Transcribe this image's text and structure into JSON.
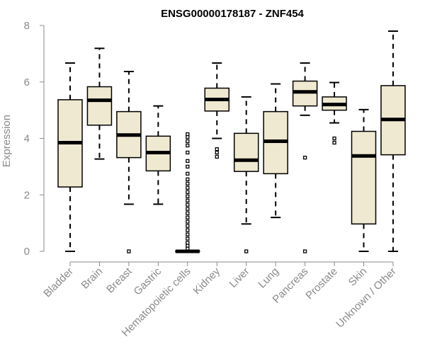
{
  "chart_data": {
    "type": "boxplot",
    "title": "ENSG00000178187 - ZNF454",
    "xlabel": "",
    "ylabel": "Expression",
    "ylim": [
      0,
      8
    ],
    "yticks": [
      0,
      2,
      4,
      6,
      8
    ],
    "box_color": "#efe9d1",
    "stroke_color": "#000000",
    "categories": [
      "Bladder",
      "Brain",
      "Breast",
      "Gastric",
      "Hematopoietic cells",
      "Kidney",
      "Liver",
      "Lung",
      "Pancreas",
      "Prostate",
      "Skin",
      "Unknown / Other"
    ],
    "boxes": [
      {
        "category": "Bladder",
        "whisker_low": 0.0,
        "q1": 2.28,
        "median": 3.85,
        "q3": 5.37,
        "whisker_high": 6.67,
        "outliers": []
      },
      {
        "category": "Brain",
        "whisker_low": 3.27,
        "q1": 4.47,
        "median": 5.35,
        "q3": 5.83,
        "whisker_high": 7.19,
        "outliers": []
      },
      {
        "category": "Breast",
        "whisker_low": 1.67,
        "q1": 3.32,
        "median": 4.12,
        "q3": 4.95,
        "whisker_high": 6.37,
        "outliers": [
          0.0
        ]
      },
      {
        "category": "Gastric",
        "whisker_low": 1.67,
        "q1": 2.85,
        "median": 3.5,
        "q3": 4.08,
        "whisker_high": 5.15,
        "outliers": []
      },
      {
        "category": "Hematopoietic cells",
        "whisker_low": 0.0,
        "q1": 0.0,
        "median": 0.0,
        "q3": 0.0,
        "whisker_high": 0.0,
        "outliers": [
          0.1,
          0.2,
          0.3,
          0.45,
          0.6,
          0.75,
          0.9,
          1.05,
          1.2,
          1.35,
          1.5,
          1.65,
          1.8,
          1.95,
          2.1,
          2.25,
          2.4,
          2.55,
          2.75,
          3.0,
          3.2,
          3.5,
          3.75,
          3.9,
          4.05,
          4.15
        ]
      },
      {
        "category": "Kidney",
        "whisker_low": 4.0,
        "q1": 4.97,
        "median": 5.38,
        "q3": 5.78,
        "whisker_high": 6.67,
        "outliers": [
          3.35,
          3.5,
          3.62
        ]
      },
      {
        "category": "Liver",
        "whisker_low": 0.97,
        "q1": 2.83,
        "median": 3.23,
        "q3": 4.18,
        "whisker_high": 5.47,
        "outliers": [
          0.0
        ]
      },
      {
        "category": "Lung",
        "whisker_low": 1.2,
        "q1": 2.75,
        "median": 3.9,
        "q3": 4.95,
        "whisker_high": 5.93,
        "outliers": []
      },
      {
        "category": "Pancreas",
        "whisker_low": 4.82,
        "q1": 5.15,
        "median": 5.65,
        "q3": 6.03,
        "whisker_high": 6.67,
        "outliers": [
          0.0,
          3.32
        ]
      },
      {
        "category": "Prostate",
        "whisker_low": 4.55,
        "q1": 5.0,
        "median": 5.2,
        "q3": 5.47,
        "whisker_high": 5.98,
        "outliers": [
          3.85,
          4.0
        ]
      },
      {
        "category": "Skin",
        "whisker_low": 0.0,
        "q1": 0.97,
        "median": 3.38,
        "q3": 4.25,
        "whisker_high": 5.02,
        "outliers": []
      },
      {
        "category": "Unknown / Other",
        "whisker_low": 0.0,
        "q1": 3.42,
        "median": 4.67,
        "q3": 5.87,
        "whisker_high": 7.8,
        "outliers": []
      }
    ]
  }
}
